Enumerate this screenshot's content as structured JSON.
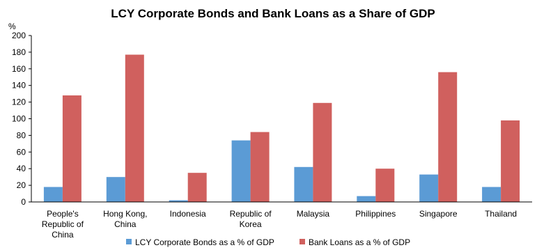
{
  "chart_data": {
    "type": "bar",
    "title": "LCY Corporate Bonds and Bank Loans as a Share of GDP",
    "ylabel": "%",
    "xlabel": "",
    "ylim": [
      0,
      200
    ],
    "yticks": [
      "0",
      "20",
      "40",
      "60",
      "80",
      "100",
      "120",
      "140",
      "160",
      "180",
      "200"
    ],
    "categories": [
      [
        "People's",
        "Republic of",
        "China"
      ],
      [
        "Hong Kong,",
        "China"
      ],
      [
        "Indonesia"
      ],
      [
        "Republic of",
        "Korea"
      ],
      [
        "Malaysia"
      ],
      [
        "Philippines"
      ],
      [
        "Singapore"
      ],
      [
        "Thailand"
      ]
    ],
    "series": [
      {
        "name": "LCY Corporate Bonds as a % of GDP",
        "color": "#5B9BD5",
        "values": [
          18,
          30,
          2,
          74,
          42,
          7,
          33,
          18
        ]
      },
      {
        "name": "Bank Loans as a % of GDP",
        "color": "#D0605E",
        "values": [
          128,
          177,
          35,
          84,
          119,
          40,
          156,
          98
        ]
      }
    ],
    "grid": false,
    "legend_position": "bottom"
  }
}
